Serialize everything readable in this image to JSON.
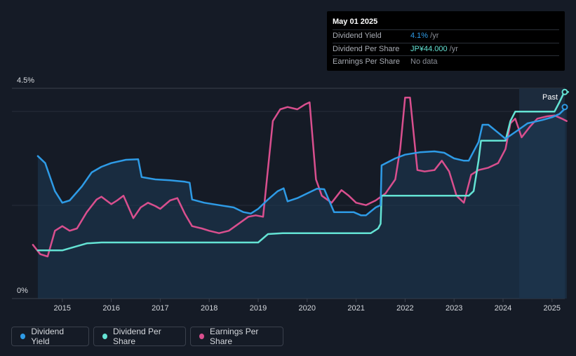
{
  "tooltip": {
    "date": "May 01 2025",
    "rows": [
      {
        "label": "Dividend Yield",
        "value": "4.1%",
        "unit": " /yr"
      },
      {
        "label": "Dividend Per Share",
        "value": "JP¥44.000",
        "unit": " /yr"
      },
      {
        "label": "Earnings Per Share",
        "value": "No data",
        "unit": ""
      }
    ]
  },
  "legend": [
    {
      "label": "Dividend Yield",
      "color": "#2e9be6"
    },
    {
      "label": "Dividend Per Share",
      "color": "#64e3d4"
    },
    {
      "label": "Earnings Per Share",
      "color": "#d94f8e"
    }
  ],
  "past_label": "Past",
  "chart_data": {
    "type": "line",
    "x_ticks": [
      "2015",
      "2016",
      "2017",
      "2018",
      "2019",
      "2020",
      "2021",
      "2022",
      "2023",
      "2024",
      "2025"
    ],
    "y_ticks": [
      "0%",
      "4.5%"
    ],
    "ylim": [
      0,
      4.5
    ],
    "xlim": [
      2014.5,
      2025.33
    ],
    "forecast_start": 2024.33,
    "series": [
      {
        "name": "Dividend Yield",
        "color": "#2e9be6",
        "points": [
          [
            2014.5,
            3.05
          ],
          [
            2014.65,
            2.9
          ],
          [
            2014.85,
            2.3
          ],
          [
            2015.0,
            2.05
          ],
          [
            2015.15,
            2.1
          ],
          [
            2015.4,
            2.4
          ],
          [
            2015.6,
            2.7
          ],
          [
            2015.8,
            2.82
          ],
          [
            2016.0,
            2.9
          ],
          [
            2016.3,
            2.97
          ],
          [
            2016.55,
            2.98
          ],
          [
            2016.62,
            2.6
          ],
          [
            2016.9,
            2.55
          ],
          [
            2017.2,
            2.53
          ],
          [
            2017.5,
            2.5
          ],
          [
            2017.6,
            2.48
          ],
          [
            2017.65,
            2.12
          ],
          [
            2017.9,
            2.05
          ],
          [
            2018.2,
            2.0
          ],
          [
            2018.5,
            1.95
          ],
          [
            2018.7,
            1.85
          ],
          [
            2018.85,
            1.82
          ],
          [
            2019.0,
            1.92
          ],
          [
            2019.2,
            2.12
          ],
          [
            2019.4,
            2.3
          ],
          [
            2019.52,
            2.36
          ],
          [
            2019.6,
            2.08
          ],
          [
            2019.8,
            2.15
          ],
          [
            2020.0,
            2.25
          ],
          [
            2020.2,
            2.35
          ],
          [
            2020.35,
            2.34
          ],
          [
            2020.55,
            1.85
          ],
          [
            2020.8,
            1.85
          ],
          [
            2020.95,
            1.85
          ],
          [
            2021.1,
            1.78
          ],
          [
            2021.2,
            1.78
          ],
          [
            2021.4,
            1.95
          ],
          [
            2021.5,
            2.0
          ],
          [
            2021.52,
            2.85
          ],
          [
            2021.8,
            3.0
          ],
          [
            2022.0,
            3.08
          ],
          [
            2022.3,
            3.13
          ],
          [
            2022.6,
            3.15
          ],
          [
            2022.8,
            3.12
          ],
          [
            2023.0,
            3.0
          ],
          [
            2023.2,
            2.95
          ],
          [
            2023.3,
            2.95
          ],
          [
            2023.5,
            3.35
          ],
          [
            2023.58,
            3.72
          ],
          [
            2023.7,
            3.72
          ],
          [
            2023.9,
            3.55
          ],
          [
            2024.05,
            3.42
          ],
          [
            2024.3,
            3.6
          ],
          [
            2024.5,
            3.75
          ],
          [
            2024.8,
            3.82
          ],
          [
            2025.0,
            3.88
          ],
          [
            2025.15,
            3.95
          ],
          [
            2025.3,
            4.1
          ]
        ]
      },
      {
        "name": "Dividend Per Share",
        "color": "#64e3d4",
        "points": [
          [
            2014.5,
            1.03
          ],
          [
            2015.0,
            1.03
          ],
          [
            2015.3,
            1.12
          ],
          [
            2015.5,
            1.18
          ],
          [
            2015.8,
            1.2
          ],
          [
            2016.5,
            1.2
          ],
          [
            2017.5,
            1.2
          ],
          [
            2018.5,
            1.2
          ],
          [
            2019.0,
            1.2
          ],
          [
            2019.1,
            1.29
          ],
          [
            2019.2,
            1.38
          ],
          [
            2019.5,
            1.4
          ],
          [
            2020.0,
            1.4
          ],
          [
            2020.5,
            1.4
          ],
          [
            2021.0,
            1.4
          ],
          [
            2021.3,
            1.4
          ],
          [
            2021.45,
            1.5
          ],
          [
            2021.5,
            1.6
          ],
          [
            2021.52,
            2.2
          ],
          [
            2022.0,
            2.2
          ],
          [
            2022.5,
            2.2
          ],
          [
            2023.0,
            2.2
          ],
          [
            2023.3,
            2.2
          ],
          [
            2023.4,
            2.3
          ],
          [
            2023.5,
            2.95
          ],
          [
            2023.55,
            3.38
          ],
          [
            2023.8,
            3.38
          ],
          [
            2024.05,
            3.38
          ],
          [
            2024.15,
            3.8
          ],
          [
            2024.25,
            4.0
          ],
          [
            2024.5,
            4.0
          ],
          [
            2025.0,
            4.0
          ],
          [
            2025.05,
            4.0
          ],
          [
            2025.15,
            4.2
          ],
          [
            2025.25,
            4.42
          ],
          [
            2025.33,
            4.42
          ]
        ]
      },
      {
        "name": "Earnings Per Share",
        "color": "#d94f8e",
        "points": [
          [
            2014.4,
            1.15
          ],
          [
            2014.55,
            0.95
          ],
          [
            2014.7,
            0.9
          ],
          [
            2014.85,
            1.45
          ],
          [
            2015.0,
            1.55
          ],
          [
            2015.15,
            1.45
          ],
          [
            2015.3,
            1.5
          ],
          [
            2015.5,
            1.85
          ],
          [
            2015.7,
            2.12
          ],
          [
            2015.8,
            2.18
          ],
          [
            2016.0,
            2.02
          ],
          [
            2016.12,
            2.1
          ],
          [
            2016.25,
            2.2
          ],
          [
            2016.45,
            1.72
          ],
          [
            2016.6,
            1.95
          ],
          [
            2016.75,
            2.05
          ],
          [
            2016.9,
            1.98
          ],
          [
            2017.0,
            1.92
          ],
          [
            2017.2,
            2.1
          ],
          [
            2017.35,
            2.15
          ],
          [
            2017.5,
            1.82
          ],
          [
            2017.65,
            1.55
          ],
          [
            2017.85,
            1.5
          ],
          [
            2018.0,
            1.45
          ],
          [
            2018.2,
            1.4
          ],
          [
            2018.4,
            1.45
          ],
          [
            2018.6,
            1.6
          ],
          [
            2018.8,
            1.75
          ],
          [
            2018.95,
            1.78
          ],
          [
            2019.1,
            1.75
          ],
          [
            2019.3,
            3.8
          ],
          [
            2019.45,
            4.05
          ],
          [
            2019.6,
            4.1
          ],
          [
            2019.8,
            4.05
          ],
          [
            2019.95,
            4.15
          ],
          [
            2020.05,
            4.2
          ],
          [
            2020.18,
            2.55
          ],
          [
            2020.3,
            2.2
          ],
          [
            2020.5,
            2.05
          ],
          [
            2020.7,
            2.32
          ],
          [
            2020.85,
            2.2
          ],
          [
            2021.0,
            2.05
          ],
          [
            2021.2,
            2.0
          ],
          [
            2021.4,
            2.1
          ],
          [
            2021.6,
            2.25
          ],
          [
            2021.8,
            2.55
          ],
          [
            2021.9,
            3.2
          ],
          [
            2022.0,
            4.3
          ],
          [
            2022.1,
            4.3
          ],
          [
            2022.25,
            2.75
          ],
          [
            2022.4,
            2.72
          ],
          [
            2022.6,
            2.75
          ],
          [
            2022.75,
            2.95
          ],
          [
            2022.9,
            2.72
          ],
          [
            2023.05,
            2.2
          ],
          [
            2023.2,
            2.05
          ],
          [
            2023.35,
            2.65
          ],
          [
            2023.5,
            2.75
          ],
          [
            2023.7,
            2.8
          ],
          [
            2023.9,
            2.9
          ],
          [
            2024.05,
            3.2
          ],
          [
            2024.15,
            3.75
          ],
          [
            2024.25,
            3.85
          ],
          [
            2024.38,
            3.45
          ],
          [
            2024.55,
            3.68
          ],
          [
            2024.7,
            3.85
          ],
          [
            2024.9,
            3.9
          ],
          [
            2025.05,
            3.92
          ],
          [
            2025.2,
            3.85
          ],
          [
            2025.3,
            3.8
          ]
        ]
      }
    ]
  }
}
